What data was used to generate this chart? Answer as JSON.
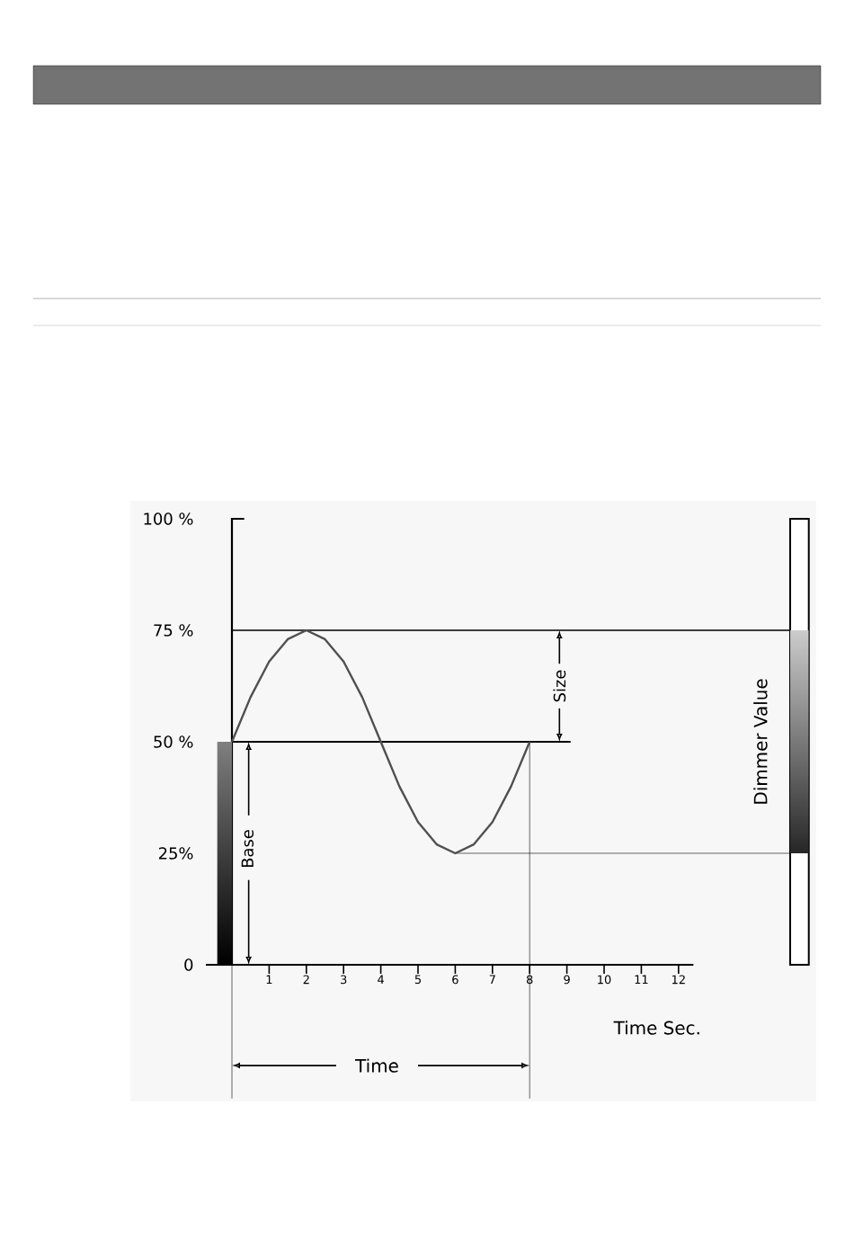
{
  "chart_data": {
    "type": "line",
    "xlabel": "Time Sec.",
    "xlim": [
      -0.7,
      12.4
    ],
    "ylim": [
      0,
      100
    ],
    "xticks": [
      1,
      2,
      3,
      4,
      5,
      6,
      7,
      8,
      9,
      10,
      11,
      12
    ],
    "yticks": [
      0,
      {
        "value": 25,
        "label": "25%"
      },
      {
        "value": 50,
        "label": "50 %"
      },
      {
        "value": 75,
        "label": "75 %"
      },
      {
        "value": 100,
        "label": "100 %"
      }
    ],
    "series": [
      {
        "color": "#505050",
        "x": [
          0,
          0.5,
          1,
          1.5,
          2,
          2.5,
          3,
          3.5,
          4,
          4.5,
          5,
          5.5,
          6,
          6.5,
          7,
          7.5,
          8
        ],
        "values": [
          50,
          60,
          68,
          73,
          75,
          73,
          68,
          60,
          50,
          40,
          32,
          27,
          25,
          27,
          32,
          40,
          50
        ]
      },
      {
        "type": "bar",
        "color": "#000000",
        "x": [
          -0.2
        ],
        "values": [
          50
        ]
      }
    ],
    "ref_lines": [
      {
        "axis": "y",
        "value": 75
      },
      {
        "axis": "y",
        "value": 50
      },
      {
        "axis": "y",
        "value": 25
      },
      {
        "axis": "x",
        "value": 8
      }
    ],
    "grid": false,
    "legend": false,
    "marker": "none",
    "line_style": "solid",
    "annotations": [
      "Size",
      "Base",
      "Time",
      "Dimmer Value"
    ]
  }
}
